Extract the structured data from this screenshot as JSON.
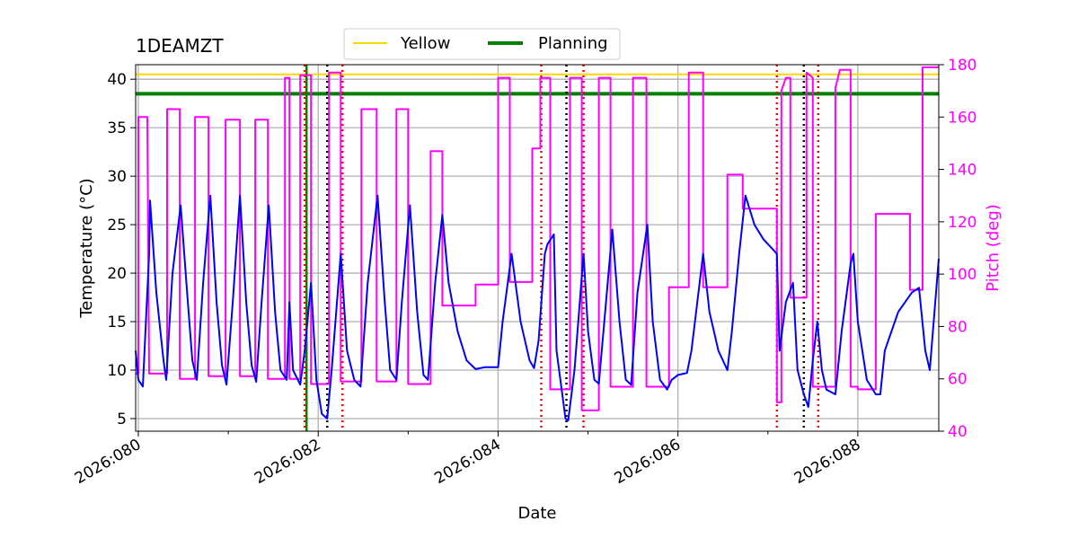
{
  "chart_data": {
    "type": "line",
    "title": "1DEAMZT",
    "xlabel": "Date",
    "ylabel": "Temperature ($^\\circ$C)",
    "ylabel_display": "Temperature (°C)",
    "y2label": "Pitch (deg)",
    "xlim": [
      79.97,
      88.9
    ],
    "ylim": [
      3.7,
      41.5
    ],
    "y2lim": [
      40,
      180
    ],
    "x_ticks": [
      {
        "value": 80,
        "label": "2026:080"
      },
      {
        "value": 82,
        "label": "2026:082"
      },
      {
        "value": 84,
        "label": "2026:084"
      },
      {
        "value": 86,
        "label": "2026:086"
      },
      {
        "value": 88,
        "label": "2026:088"
      }
    ],
    "y_ticks": [
      5,
      10,
      15,
      20,
      25,
      30,
      35,
      40
    ],
    "y2_ticks": [
      40,
      60,
      80,
      100,
      120,
      140,
      160,
      180
    ],
    "grid": true,
    "legend": {
      "placement": "top-center",
      "entries": [
        {
          "name": "Yellow",
          "color": "#FFD700"
        },
        {
          "name": "Planning",
          "color": "#008000"
        }
      ]
    },
    "colors": {
      "temperature": "#0000FF",
      "pitch": "#FF00FF",
      "yellow": "#FFD700",
      "planning": "#008000",
      "red_markers": "#FF0000",
      "black_markers": "#000000"
    },
    "yellow_limit": 40.5,
    "planning_limit": 38.5,
    "vlines_green": [
      81.87
    ],
    "vlines_red": [
      81.85,
      82.27,
      84.48,
      84.95,
      87.1,
      87.56
    ],
    "vlines_black": [
      82.1,
      84.76,
      87.4
    ],
    "temperature_series": {
      "name": "1DEAMZT",
      "points": [
        [
          79.97,
          12.0
        ],
        [
          80.0,
          9.0
        ],
        [
          80.05,
          8.3
        ],
        [
          80.12,
          22.0
        ],
        [
          80.13,
          27.5
        ],
        [
          80.2,
          18.0
        ],
        [
          80.28,
          11.0
        ],
        [
          80.31,
          9.0
        ],
        [
          80.38,
          20.0
        ],
        [
          80.47,
          27.0
        ],
        [
          80.55,
          17.0
        ],
        [
          80.6,
          11.0
        ],
        [
          80.65,
          9.0
        ],
        [
          80.72,
          19.0
        ],
        [
          80.8,
          28.0
        ],
        [
          80.87,
          17.0
        ],
        [
          80.93,
          10.5
        ],
        [
          80.98,
          8.5
        ],
        [
          81.05,
          17.0
        ],
        [
          81.13,
          28.0
        ],
        [
          81.2,
          17.0
        ],
        [
          81.26,
          10.5
        ],
        [
          81.31,
          8.8
        ],
        [
          81.37,
          17.0
        ],
        [
          81.45,
          27.0
        ],
        [
          81.52,
          16.0
        ],
        [
          81.58,
          10.0
        ],
        [
          81.65,
          9.0
        ],
        [
          81.68,
          17.0
        ],
        [
          81.72,
          10.0
        ],
        [
          81.8,
          8.5
        ],
        [
          81.85,
          12.0
        ],
        [
          81.92,
          19.0
        ],
        [
          81.98,
          9.0
        ],
        [
          82.04,
          5.5
        ],
        [
          82.1,
          5.0
        ],
        [
          82.15,
          10.0
        ],
        [
          82.25,
          22.0
        ],
        [
          82.32,
          12.0
        ],
        [
          82.4,
          9.0
        ],
        [
          82.47,
          8.3
        ],
        [
          82.55,
          19.0
        ],
        [
          82.66,
          28.0
        ],
        [
          82.74,
          17.0
        ],
        [
          82.8,
          10.0
        ],
        [
          82.87,
          9.0
        ],
        [
          82.93,
          17.0
        ],
        [
          83.02,
          27.0
        ],
        [
          83.1,
          16.0
        ],
        [
          83.17,
          9.5
        ],
        [
          83.22,
          9.0
        ],
        [
          83.3,
          19.0
        ],
        [
          83.38,
          26.0
        ],
        [
          83.45,
          19.0
        ],
        [
          83.55,
          14.0
        ],
        [
          83.65,
          11.0
        ],
        [
          83.75,
          10.1
        ],
        [
          83.85,
          10.3
        ],
        [
          84.0,
          10.3
        ],
        [
          84.05,
          15.0
        ],
        [
          84.15,
          22.0
        ],
        [
          84.25,
          15.0
        ],
        [
          84.35,
          11.0
        ],
        [
          84.4,
          10.2
        ],
        [
          84.45,
          13.0
        ],
        [
          84.52,
          22.0
        ],
        [
          84.55,
          23.0
        ],
        [
          84.62,
          24.0
        ],
        [
          84.65,
          12.0
        ],
        [
          84.75,
          5.0
        ],
        [
          84.78,
          4.8
        ],
        [
          84.85,
          10.0
        ],
        [
          84.95,
          22.0
        ],
        [
          85.0,
          14.0
        ],
        [
          85.07,
          9.0
        ],
        [
          85.12,
          8.6
        ],
        [
          85.2,
          17.0
        ],
        [
          85.27,
          24.5
        ],
        [
          85.35,
          15.0
        ],
        [
          85.42,
          9.0
        ],
        [
          85.48,
          8.5
        ],
        [
          85.55,
          18.0
        ],
        [
          85.66,
          25.0
        ],
        [
          85.72,
          15.0
        ],
        [
          85.8,
          9.0
        ],
        [
          85.88,
          8.0
        ],
        [
          85.93,
          9.0
        ],
        [
          86.0,
          9.5
        ],
        [
          86.1,
          9.7
        ],
        [
          86.15,
          12.0
        ],
        [
          86.28,
          22.0
        ],
        [
          86.35,
          16.0
        ],
        [
          86.45,
          12.0
        ],
        [
          86.55,
          10.0
        ],
        [
          86.6,
          14.0
        ],
        [
          86.68,
          22.0
        ],
        [
          86.75,
          28.0
        ],
        [
          86.85,
          25.0
        ],
        [
          86.95,
          23.5
        ],
        [
          87.05,
          22.5
        ],
        [
          87.1,
          22.0
        ],
        [
          87.13,
          12.0
        ],
        [
          87.2,
          17.0
        ],
        [
          87.28,
          19.0
        ],
        [
          87.33,
          10.0
        ],
        [
          87.4,
          7.5
        ],
        [
          87.45,
          6.2
        ],
        [
          87.5,
          11.0
        ],
        [
          87.55,
          15.0
        ],
        [
          87.6,
          10.0
        ],
        [
          87.65,
          8.0
        ],
        [
          87.75,
          7.5
        ],
        [
          87.82,
          14.0
        ],
        [
          87.92,
          21.0
        ],
        [
          87.95,
          22.0
        ],
        [
          88.0,
          15.0
        ],
        [
          88.1,
          9.0
        ],
        [
          88.2,
          7.5
        ],
        [
          88.25,
          7.5
        ],
        [
          88.3,
          12.0
        ],
        [
          88.45,
          16.0
        ],
        [
          88.6,
          18.0
        ],
        [
          88.68,
          18.5
        ],
        [
          88.75,
          12.0
        ],
        [
          88.8,
          10.0
        ],
        [
          88.9,
          21.5
        ]
      ]
    },
    "pitch_series": {
      "name": "Pitch (deg)",
      "points": [
        [
          79.97,
          62
        ],
        [
          80.0,
          62
        ],
        [
          80.0,
          160
        ],
        [
          80.1,
          160
        ],
        [
          80.12,
          62
        ],
        [
          80.32,
          62
        ],
        [
          80.32,
          163
        ],
        [
          80.46,
          163
        ],
        [
          80.46,
          60
        ],
        [
          80.63,
          60
        ],
        [
          80.63,
          160
        ],
        [
          80.78,
          160
        ],
        [
          80.78,
          61
        ],
        [
          80.97,
          61
        ],
        [
          80.97,
          159
        ],
        [
          81.13,
          159
        ],
        [
          81.13,
          61
        ],
        [
          81.3,
          61
        ],
        [
          81.3,
          159
        ],
        [
          81.44,
          159
        ],
        [
          81.44,
          60
        ],
        [
          81.63,
          60
        ],
        [
          81.63,
          175
        ],
        [
          81.68,
          175
        ],
        [
          81.68,
          60
        ],
        [
          81.8,
          60
        ],
        [
          81.8,
          176
        ],
        [
          81.92,
          176
        ],
        [
          81.92,
          58
        ],
        [
          82.12,
          58
        ],
        [
          82.12,
          177
        ],
        [
          82.25,
          177
        ],
        [
          82.25,
          59
        ],
        [
          82.48,
          59
        ],
        [
          82.48,
          163
        ],
        [
          82.65,
          163
        ],
        [
          82.65,
          59
        ],
        [
          82.87,
          59
        ],
        [
          82.87,
          163
        ],
        [
          83.0,
          163
        ],
        [
          83.0,
          58
        ],
        [
          83.25,
          58
        ],
        [
          83.25,
          147
        ],
        [
          83.38,
          147
        ],
        [
          83.38,
          88
        ],
        [
          83.75,
          88
        ],
        [
          83.75,
          96
        ],
        [
          84.0,
          96
        ],
        [
          84.0,
          175
        ],
        [
          84.13,
          175
        ],
        [
          84.13,
          97
        ],
        [
          84.38,
          97
        ],
        [
          84.38,
          148
        ],
        [
          84.47,
          148
        ],
        [
          84.47,
          175
        ],
        [
          84.58,
          175
        ],
        [
          84.58,
          56
        ],
        [
          84.8,
          56
        ],
        [
          84.8,
          175
        ],
        [
          84.93,
          175
        ],
        [
          84.93,
          48
        ],
        [
          85.12,
          48
        ],
        [
          85.12,
          175
        ],
        [
          85.25,
          175
        ],
        [
          85.25,
          57
        ],
        [
          85.5,
          57
        ],
        [
          85.5,
          175
        ],
        [
          85.65,
          175
        ],
        [
          85.65,
          57
        ],
        [
          85.9,
          57
        ],
        [
          85.9,
          95
        ],
        [
          86.12,
          95
        ],
        [
          86.12,
          177
        ],
        [
          86.28,
          177
        ],
        [
          86.28,
          95
        ],
        [
          86.55,
          95
        ],
        [
          86.55,
          138
        ],
        [
          86.72,
          138
        ],
        [
          86.72,
          125
        ],
        [
          87.1,
          125
        ],
        [
          87.1,
          51
        ],
        [
          87.15,
          51
        ],
        [
          87.15,
          170
        ],
        [
          87.2,
          175
        ],
        [
          87.25,
          175
        ],
        [
          87.25,
          91
        ],
        [
          87.43,
          91
        ],
        [
          87.43,
          177
        ],
        [
          87.5,
          175
        ],
        [
          87.5,
          57
        ],
        [
          87.55,
          57
        ],
        [
          87.55,
          57
        ],
        [
          87.75,
          57
        ],
        [
          87.75,
          171
        ],
        [
          87.8,
          178
        ],
        [
          87.92,
          178
        ],
        [
          87.92,
          57
        ],
        [
          88.0,
          57
        ],
        [
          88.0,
          56
        ],
        [
          88.2,
          56
        ],
        [
          88.2,
          123
        ],
        [
          88.58,
          123
        ],
        [
          88.58,
          94
        ],
        [
          88.72,
          94
        ],
        [
          88.72,
          179
        ],
        [
          88.9,
          179
        ]
      ]
    }
  }
}
